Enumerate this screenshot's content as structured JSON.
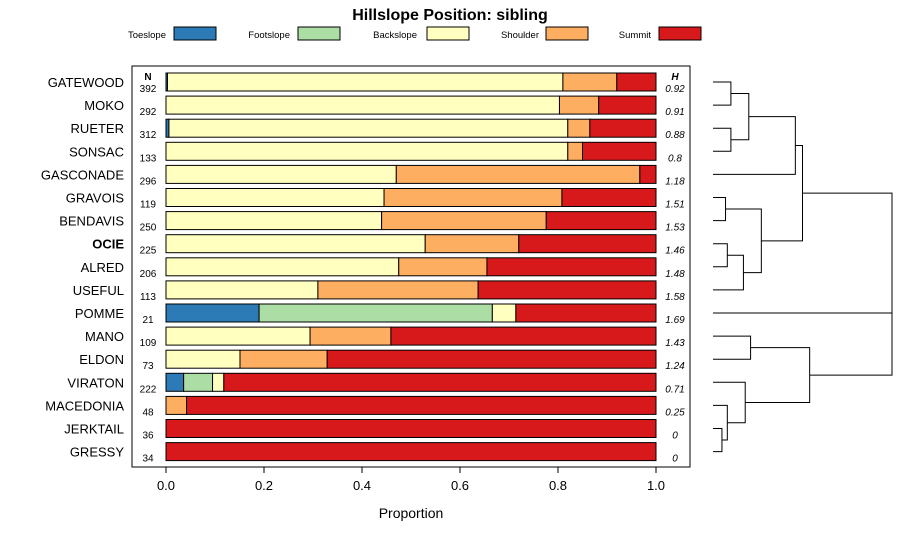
{
  "chart_data": {
    "type": "bar",
    "orientation": "horizontal",
    "stacked": true,
    "title": "Hillslope Position: sibling",
    "xlabel": "Proportion",
    "xlim": [
      0,
      1
    ],
    "xticks": [
      "0.0",
      "0.2",
      "0.4",
      "0.6",
      "0.8",
      "1.0"
    ],
    "legend_position": "top",
    "n_header": "N",
    "h_header": "H",
    "highlight_category": "OCIE",
    "series": [
      {
        "name": "Toeslope",
        "color": "#2c7bb6"
      },
      {
        "name": "Footslope",
        "color": "#abdda4"
      },
      {
        "name": "Backslope",
        "color": "#ffffbf"
      },
      {
        "name": "Shoulder",
        "color": "#fdae61"
      },
      {
        "name": "Summit",
        "color": "#d7191c"
      }
    ],
    "categories": [
      {
        "label": "GATEWOOD",
        "n": "392",
        "h": "0.92",
        "values": [
          0.003,
          0,
          0.807,
          0.11,
          0.08
        ]
      },
      {
        "label": "MOKO",
        "n": "292",
        "h": "0.91",
        "values": [
          0,
          0,
          0.803,
          0.08,
          0.117
        ]
      },
      {
        "label": "RUETER",
        "n": "312",
        "h": "0.88",
        "values": [
          0.006,
          0,
          0.814,
          0.045,
          0.135
        ]
      },
      {
        "label": "SONSAC",
        "n": "133",
        "h": "0.8",
        "values": [
          0,
          0,
          0.82,
          0.03,
          0.15
        ]
      },
      {
        "label": "GASCONADE",
        "n": "296",
        "h": "1.18",
        "values": [
          0,
          0,
          0.47,
          0.497,
          0.033
        ]
      },
      {
        "label": "GRAVOIS",
        "n": "119",
        "h": "1.51",
        "values": [
          0,
          0,
          0.445,
          0.363,
          0.192
        ]
      },
      {
        "label": "BENDAVIS",
        "n": "250",
        "h": "1.53",
        "values": [
          0,
          0,
          0.44,
          0.336,
          0.224
        ]
      },
      {
        "label": "OCIE",
        "n": "225",
        "h": "1.46",
        "values": [
          0,
          0,
          0.529,
          0.191,
          0.28
        ]
      },
      {
        "label": "ALRED",
        "n": "206",
        "h": "1.48",
        "values": [
          0,
          0,
          0.475,
          0.18,
          0.345
        ]
      },
      {
        "label": "USEFUL",
        "n": "113",
        "h": "1.58",
        "values": [
          0,
          0,
          0.31,
          0.327,
          0.363
        ]
      },
      {
        "label": "POMME",
        "n": "21",
        "h": "1.69",
        "values": [
          0.19,
          0.476,
          0.048,
          0,
          0.286
        ]
      },
      {
        "label": "MANO",
        "n": "109",
        "h": "1.43",
        "values": [
          0,
          0,
          0.294,
          0.165,
          0.541
        ]
      },
      {
        "label": "ELDON",
        "n": "73",
        "h": "1.24",
        "values": [
          0,
          0,
          0.151,
          0.178,
          0.671
        ]
      },
      {
        "label": "VIRATON",
        "n": "222",
        "h": "0.71",
        "values": [
          0.036,
          0.059,
          0.023,
          0,
          0.882
        ]
      },
      {
        "label": "MACEDONIA",
        "n": "48",
        "h": "0.25",
        "values": [
          0,
          0,
          0,
          0.042,
          0.958
        ]
      },
      {
        "label": "JERKTAIL",
        "n": "36",
        "h": "0",
        "values": [
          0,
          0,
          0,
          0,
          1
        ]
      },
      {
        "label": "GRESSY",
        "n": "34",
        "h": "0",
        "values": [
          0,
          0,
          0,
          0,
          1
        ]
      }
    ],
    "dendrogram": {
      "leaves": [
        "GATEWOOD",
        "MOKO",
        "RUETER",
        "SONSAC",
        "GASCONADE",
        "GRAVOIS",
        "BENDAVIS",
        "OCIE",
        "ALRED",
        "USEFUL",
        "POMME",
        "MANO",
        "ELDON",
        "VIRATON",
        "MACEDONIA",
        "JERKTAIL",
        "GRESSY"
      ],
      "merges": [
        [
          0,
          1,
          0.1
        ],
        [
          2,
          3,
          0.1
        ],
        [
          -1,
          -2,
          0.2
        ],
        [
          -3,
          4,
          0.46
        ],
        [
          5,
          6,
          0.07
        ],
        [
          7,
          8,
          0.08
        ],
        [
          -6,
          9,
          0.17
        ],
        [
          -5,
          -7,
          0.27
        ],
        [
          -4,
          -8,
          0.5
        ],
        [
          11,
          12,
          0.21
        ],
        [
          15,
          16,
          0.05
        ],
        [
          14,
          -11,
          0.08
        ],
        [
          13,
          -12,
          0.18
        ],
        [
          -10,
          -13,
          0.54
        ],
        [
          10,
          -14,
          1.0
        ],
        [
          -9,
          -15,
          1.0
        ]
      ]
    }
  }
}
